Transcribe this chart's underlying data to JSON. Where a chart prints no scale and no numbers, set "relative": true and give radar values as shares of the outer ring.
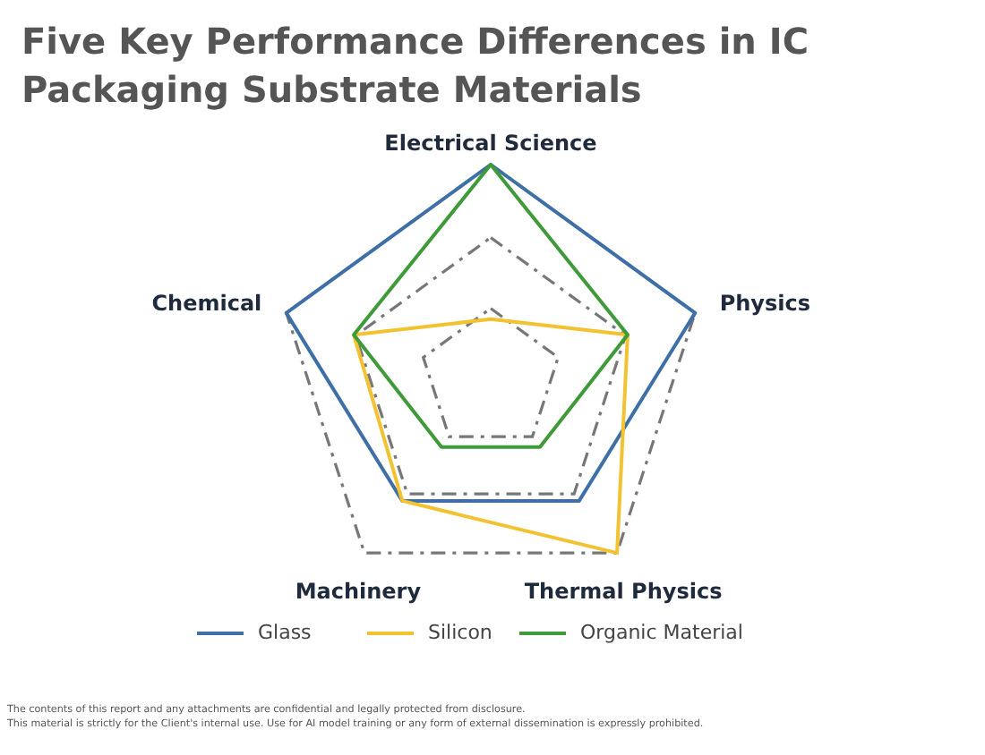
{
  "chart_data": {
    "type": "radar",
    "title": "Five Key Performance Differences in IC Packaging Substrate Materials",
    "categories": [
      "Electrical Science",
      "Physics",
      "Thermal Physics",
      "Machinery",
      "Chemical"
    ],
    "relative": true,
    "grid": true,
    "legend": "bottom",
    "line_style": "solid",
    "marker": "none",
    "series": [
      {
        "name": "Glass",
        "color": "#3e6fa6",
        "values": [
          1,
          1,
          0.7,
          0.7,
          1
        ]
      },
      {
        "name": "Silicon",
        "color": "#f2c230",
        "values": [
          0.28,
          0.67,
          1,
          0.7,
          0.67
        ]
      },
      {
        "name": "Organic Material",
        "color": "#3f9a3a",
        "values": [
          1,
          0.67,
          0.39,
          0.39,
          0.67
        ]
      }
    ],
    "annotations": [
      "The contents of this report and any attachments are confidential and legally protected from disclosure.",
      "This material is strictly for the Client's internal use. Use for AI model training or any form of external dissemination is expressly prohibited."
    ]
  }
}
